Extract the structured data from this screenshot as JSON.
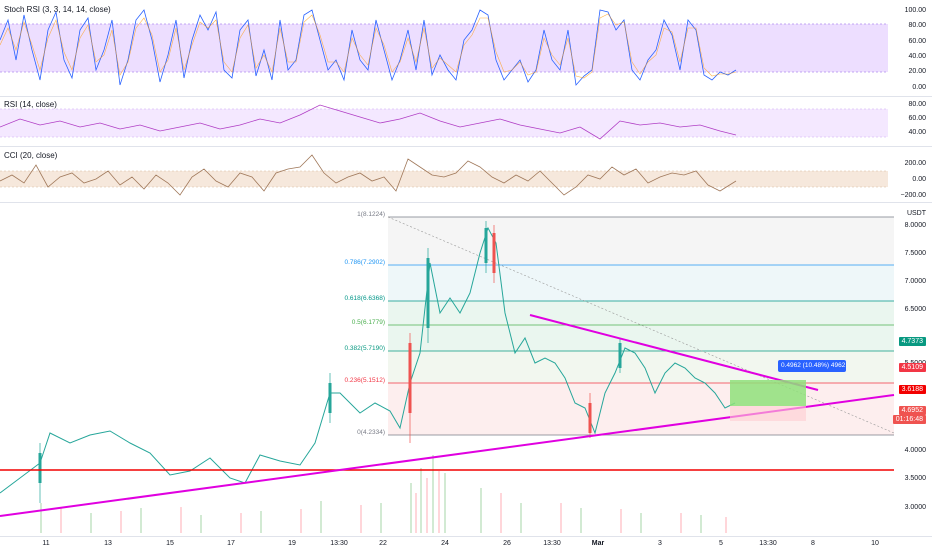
{
  "panes": {
    "stoch": {
      "label": "Stoch RSI (3, 3, 14, 14, close)",
      "ticks": [
        "100.00",
        "80.00",
        "60.00",
        "40.00",
        "20.00",
        "0.00"
      ]
    },
    "rsi": {
      "label": "RSI (14, close)",
      "ticks": [
        "80.00",
        "60.00",
        "40.00"
      ]
    },
    "cci": {
      "label": "CCI (20, close)",
      "ticks": [
        "200.00",
        "0.00",
        "−200.00"
      ]
    }
  },
  "main": {
    "currency": "USDT",
    "ticks": [
      "8.0000",
      "7.5000",
      "7.0000",
      "6.5000",
      "5.5000",
      "4.0000",
      "3.5000",
      "3.0000"
    ],
    "fib_levels": [
      "1(8.1224)",
      "0.786(7.2902)",
      "0.618(6.6368)",
      "0.5(6.1779)",
      "0.382(5.7190)",
      "0.236(5.1512)",
      "0(4.2334)"
    ],
    "projection_label": "0.4962 (10.48%) 4962",
    "price_tags": {
      "green": "4.7373",
      "red1": "4.5109",
      "red2": "3.6188",
      "red3": "4.6952",
      "countdown": "01:16:48"
    }
  },
  "x_axis": [
    "11",
    "13",
    "15",
    "17",
    "19",
    "13:30",
    "22",
    "24",
    "26",
    "13:30",
    "Mar",
    "3",
    "5",
    "13:30",
    "8",
    "10"
  ],
  "colors": {
    "accent": "#2962ff",
    "up": "#26a69a",
    "down": "#ef5350",
    "trendline": "#e000e0",
    "hline": "#f20000"
  }
}
